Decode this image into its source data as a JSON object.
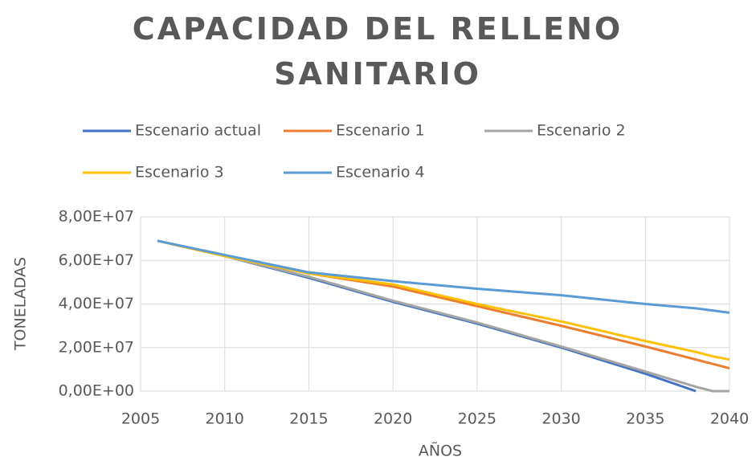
{
  "chart_data": {
    "type": "line",
    "title": "CAPACIDAD DEL RELLENO SANITARIO",
    "x_label": "AÑOS",
    "y_label": "TONELADAS",
    "x": [
      2006,
      2010,
      2015,
      2020,
      2025,
      2030,
      2035,
      2038,
      2039,
      2040
    ],
    "series": [
      {
        "name": "Escenario actual",
        "color": "#4472c4",
        "values": [
          69000000,
          62000000,
          52000000,
          41000000,
          31000000,
          20000000,
          8000000,
          0,
          null,
          null
        ]
      },
      {
        "name": "Escenario 1",
        "color": "#ed7d31",
        "values": [
          69000000,
          62000000,
          54000000,
          48000000,
          39000000,
          30000000,
          20500000,
          14500000,
          12500000,
          10500000
        ]
      },
      {
        "name": "Escenario 2",
        "color": "#a5a5a5",
        "values": [
          69000000,
          62000000,
          52500000,
          41500000,
          31500000,
          20500000,
          9000000,
          2000000,
          0,
          0
        ]
      },
      {
        "name": "Escenario 3",
        "color": "#ffc000",
        "values": [
          69000000,
          62000000,
          54000000,
          49000000,
          40000000,
          32000000,
          23000000,
          18000000,
          16000000,
          14500000
        ]
      },
      {
        "name": "Escenario 4",
        "color": "#5b9bd5",
        "values": [
          69000000,
          62500000,
          54500000,
          50500000,
          47000000,
          44000000,
          40000000,
          38000000,
          37000000,
          36000000
        ]
      }
    ],
    "xlim": [
      2005,
      2040
    ],
    "xticks": [
      2005,
      2010,
      2015,
      2020,
      2025,
      2030,
      2035,
      2040
    ],
    "ylim": [
      0,
      80000000
    ],
    "yticks": [
      {
        "value": 0,
        "label": "0,00E+00"
      },
      {
        "value": 20000000,
        "label": "2,00E+07"
      },
      {
        "value": 40000000,
        "label": "4,00E+07"
      },
      {
        "value": 60000000,
        "label": "6,00E+07"
      },
      {
        "value": 80000000,
        "label": "8,00E+07"
      }
    ],
    "grid": true,
    "legend": "top"
  }
}
